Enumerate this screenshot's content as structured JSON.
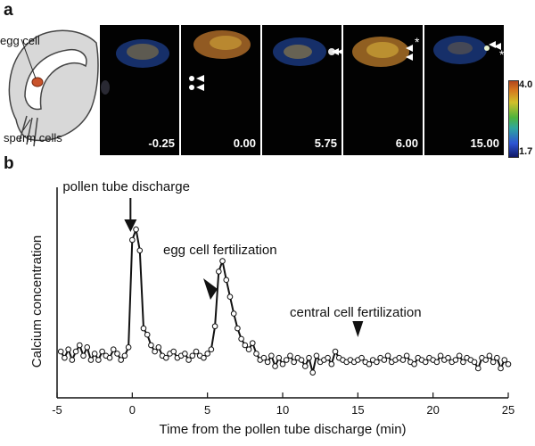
{
  "figure": {
    "panel_a_letter": "a",
    "panel_b_letter": "b",
    "diagram": {
      "egg_cell_label": "egg cell",
      "sperm_cells_label": "sperm cells"
    },
    "frames": [
      {
        "time": "-0.25"
      },
      {
        "time": "0.00"
      },
      {
        "time": "5.75"
      },
      {
        "time": "6.00"
      },
      {
        "time": "15.00"
      }
    ],
    "colorscale": {
      "max": "4.0",
      "min": "1.7"
    }
  },
  "chart_data": {
    "type": "line",
    "title": "",
    "xlabel": "Time from the pollen tube discharge  (min)",
    "ylabel": "Calcium concentration",
    "xlim": [
      -5,
      25
    ],
    "ylim": [
      0,
      1
    ],
    "xticks": [
      -5,
      0,
      5,
      10,
      15,
      20,
      25
    ],
    "x": [
      -4.75,
      -4.5,
      -4.25,
      -4.0,
      -3.75,
      -3.5,
      -3.25,
      -3.0,
      -2.75,
      -2.5,
      -2.25,
      -2.0,
      -1.75,
      -1.5,
      -1.25,
      -1.0,
      -0.75,
      -0.5,
      -0.25,
      0.0,
      0.25,
      0.5,
      0.75,
      1.0,
      1.25,
      1.5,
      1.75,
      2.0,
      2.25,
      2.5,
      2.75,
      3.0,
      3.25,
      3.5,
      3.75,
      4.0,
      4.25,
      4.5,
      4.75,
      5.0,
      5.25,
      5.5,
      5.75,
      6.0,
      6.25,
      6.5,
      6.75,
      7.0,
      7.25,
      7.5,
      7.75,
      8.0,
      8.25,
      8.5,
      8.75,
      9.0,
      9.25,
      9.5,
      9.75,
      10.0,
      10.25,
      10.5,
      10.75,
      11.0,
      11.25,
      11.5,
      11.75,
      12.0,
      12.25,
      12.5,
      12.75,
      13.0,
      13.25,
      13.5,
      13.75,
      14.0,
      14.25,
      14.5,
      14.75,
      15.0,
      15.25,
      15.5,
      15.75,
      16.0,
      16.25,
      16.5,
      16.75,
      17.0,
      17.25,
      17.5,
      17.75,
      18.0,
      18.25,
      18.5,
      18.75,
      19.0,
      19.25,
      19.5,
      19.75,
      20.0,
      20.25,
      20.5,
      20.75,
      21.0,
      21.25,
      21.5,
      21.75,
      22.0,
      22.25,
      22.5,
      22.75,
      23.0,
      23.25,
      23.5,
      23.75,
      24.0,
      24.25,
      24.5,
      24.75,
      25.0
    ],
    "values": [
      0.22,
      0.19,
      0.23,
      0.18,
      0.22,
      0.25,
      0.2,
      0.24,
      0.18,
      0.21,
      0.18,
      0.22,
      0.2,
      0.19,
      0.23,
      0.21,
      0.18,
      0.2,
      0.24,
      0.75,
      0.8,
      0.7,
      0.33,
      0.3,
      0.25,
      0.22,
      0.24,
      0.2,
      0.19,
      0.21,
      0.22,
      0.19,
      0.2,
      0.21,
      0.18,
      0.2,
      0.22,
      0.2,
      0.19,
      0.21,
      0.23,
      0.34,
      0.6,
      0.65,
      0.56,
      0.48,
      0.4,
      0.33,
      0.28,
      0.25,
      0.23,
      0.26,
      0.21,
      0.18,
      0.19,
      0.17,
      0.2,
      0.15,
      0.19,
      0.16,
      0.18,
      0.2,
      0.17,
      0.19,
      0.18,
      0.15,
      0.19,
      0.12,
      0.2,
      0.17,
      0.18,
      0.19,
      0.16,
      0.22,
      0.19,
      0.18,
      0.17,
      0.18,
      0.17,
      0.18,
      0.19,
      0.17,
      0.16,
      0.18,
      0.17,
      0.19,
      0.18,
      0.2,
      0.17,
      0.18,
      0.19,
      0.18,
      0.2,
      0.17,
      0.16,
      0.19,
      0.18,
      0.17,
      0.19,
      0.18,
      0.17,
      0.2,
      0.18,
      0.19,
      0.17,
      0.18,
      0.2,
      0.17,
      0.19,
      0.18,
      0.17,
      0.14,
      0.19,
      0.18,
      0.2,
      0.17,
      0.19,
      0.14,
      0.18,
      0.16
    ],
    "annotations": [
      {
        "text": "pollen tube discharge",
        "x": 0.0,
        "marker": "arrow-down"
      },
      {
        "text": "egg cell fertilization",
        "x": 6.25,
        "marker": "arrowhead-left"
      },
      {
        "text": "central cell fertilization",
        "x": 15.0,
        "marker": "triangle-down"
      }
    ],
    "grid": false,
    "legend": "none"
  }
}
